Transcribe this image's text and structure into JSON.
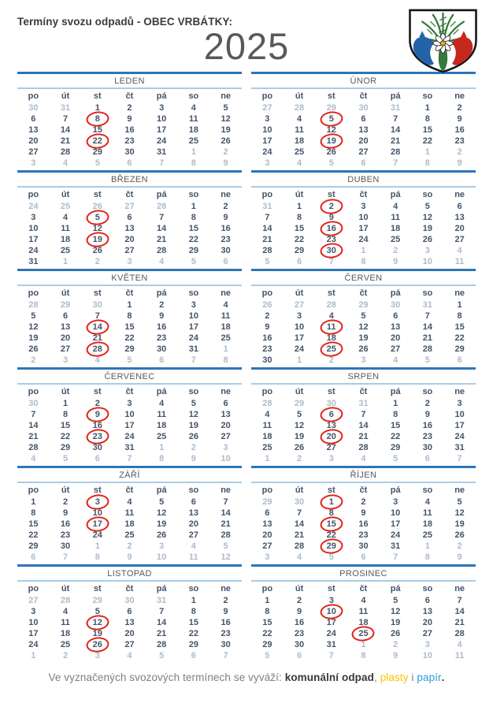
{
  "page": {
    "title": "Termíny svozu odpadů - OBEC VRBÁTKY:",
    "year": "2025"
  },
  "coat_of_arms": {
    "description": "znak-obce-vrbatky",
    "shield_fill": "#FFFFFF",
    "tree_green": "#35793B",
    "horse_left_blue": "#2563A8",
    "horse_right_red": "#C5281C",
    "flower_center": "#F6A800"
  },
  "calendar": {
    "day_headers": [
      "po",
      "út",
      "st",
      "čt",
      "pá",
      "so",
      "ne"
    ],
    "months": [
      {
        "id": "leden",
        "name": "LEDEN",
        "collection_days": [
          8,
          22
        ],
        "weeks": [
          "30o 31o 1 2 3 4 5",
          "6 7 8c 9 10 11 12",
          "13 14 15 16 17 18 19",
          "20 21 22c 23 24 25 26",
          "27 28 29 30 31 1o 2o",
          "3o 4o 5o 6o 7o 8o 9o"
        ]
      },
      {
        "id": "unor",
        "name": "ÚNOR",
        "collection_days": [
          5,
          19
        ],
        "weeks": [
          "27o 28o 29o 30o 31o 1 2",
          "3 4 5c 6 7 8 9",
          "10 11 12 13 14 15 16",
          "17 18 19c 20 21 22 23",
          "24 25 26 27 28 1o 2o",
          "3o 4o 5o 6o 7o 8o 9o"
        ]
      },
      {
        "id": "brezen",
        "name": "BŘEZEN",
        "collection_days": [
          5,
          19
        ],
        "weeks": [
          "24o 25o 26o 27o 28o 1 2",
          "3 4 5c 6 7 8 9",
          "10 11 12 13 14 15 16",
          "17 18 19c 20 21 22 23",
          "24 25 26 27 28 29 30",
          "31 1o 2o 3o 4o 5o 6o"
        ]
      },
      {
        "id": "duben",
        "name": "DUBEN",
        "collection_days": [
          2,
          16,
          30
        ],
        "weeks": [
          "31o 1 2c 3 4 5 6",
          "7 8 9 10 11 12 13",
          "14 15 16c 17 18 19 20",
          "21 22 23 24 25 26 27",
          "28 29 30c 1o 2o 3o 4o",
          "5o 6o 7o 8o 9o 10o 11o"
        ]
      },
      {
        "id": "kveten",
        "name": "KVĚTEN",
        "collection_days": [
          14,
          28
        ],
        "weeks": [
          "28o 29o 30o 1 2 3 4",
          "5 6 7 8 9 10 11",
          "12 13 14c 15 16 17 18",
          "19 20 21 22 23 24 25",
          "26 27 28c 29 30 31 1o",
          "2o 3o 4o 5o 6o 7o 8o"
        ]
      },
      {
        "id": "cerven",
        "name": "ČERVEN",
        "collection_days": [
          11,
          25
        ],
        "weeks": [
          "26o 27o 28o 29o 30o 31o 1",
          "2 3 4 5 6 7 8",
          "9 10 11c 12 13 14 15",
          "16 17 18 19 20 21 22",
          "23 24 25c 26 27 28 29",
          "30 1o 2o 3o 4o 5o 6o"
        ]
      },
      {
        "id": "cervenec",
        "name": "ČERVENEC",
        "collection_days": [
          9,
          23
        ],
        "weeks": [
          "30o 1 2 3 4 5 6",
          "7 8 9c 10 11 12 13",
          "14 15 16 17 18 19 20",
          "21 22 23c 24 25 26 27",
          "28 29 30 31 1o 2o 3o",
          "4o 5o 6o 7o 8o 9o 10o"
        ]
      },
      {
        "id": "srpen",
        "name": "SRPEN",
        "collection_days": [
          6,
          20
        ],
        "weeks": [
          "28o 29o 30o 31o 1 2 3",
          "4 5 6c 7 8 9 10",
          "11 12 13 14 15 16 17",
          "18 19 20c 21 22 23 24",
          "25 26 27 28 29 30 31",
          "1o 2o 3o 4o 5o 6o 7o"
        ]
      },
      {
        "id": "zari",
        "name": "ZÁŘÍ",
        "collection_days": [
          3,
          17
        ],
        "weeks": [
          "1 2 3c 4 5 6 7",
          "8 9 10 11 12 13 14",
          "15 16 17c 18 19 20 21",
          "22 23 24 25 26 27 28",
          "29 30 1o 2o 3o 4o 5o",
          "6o 7o 8o 9o 10o 11o 12o"
        ]
      },
      {
        "id": "rijen",
        "name": "ŘÍJEN",
        "collection_days": [
          1,
          15,
          29
        ],
        "weeks": [
          "29o 30o 1c 2 3 4 5",
          "6 7 8 9 10 11 12",
          "13 14 15c 16 17 18 19",
          "20 21 22 23 24 25 26",
          "27 28 29c 30 31 1o 2o",
          "3o 4o 5o 6o 7o 8o 9o"
        ]
      },
      {
        "id": "listopad",
        "name": "LISTOPAD",
        "collection_days": [
          12,
          26
        ],
        "weeks": [
          "27o 28o 29o 30o 31o 1 2",
          "3 4 5 6 7 8 9",
          "10 11 12c 13 14 15 16",
          "17 18 19 20 21 22 23",
          "24 25 26c 27 28 29 30",
          "1o 2o 3o 4o 5o 6o 7o"
        ]
      },
      {
        "id": "prosinec",
        "name": "PROSINEC",
        "collection_days": [
          10,
          25
        ],
        "weeks": [
          "1 2 3 4 5 6 7",
          "8 9 10c 11 12 13 14",
          "15 16 17 18 19 20 21",
          "22 23 24 25c 26 27 28",
          "29 30 31 1o 2o 3o 4o",
          "5o 6o 7o 8o 9o 10o 11o"
        ]
      }
    ]
  },
  "footer": {
    "prefix": "Ve vyznačených svozových termínech se vyváží: ",
    "waste_bold": "komunální odpad",
    "comma": ", ",
    "plastics": "plasty",
    "conjunction": " i ",
    "paper": "papír",
    "period": "."
  },
  "colors": {
    "month_bar_blue": "#2E75B6",
    "month_rule_light_blue": "#A8CCE8",
    "text_dark": "#44546A",
    "text_muted": "#AEBBCB",
    "month_name_gray": "#595959",
    "circle_red": "#E2231A",
    "plastics_yellow": "#FFC000",
    "paper_blue": "#2F9BD8"
  }
}
